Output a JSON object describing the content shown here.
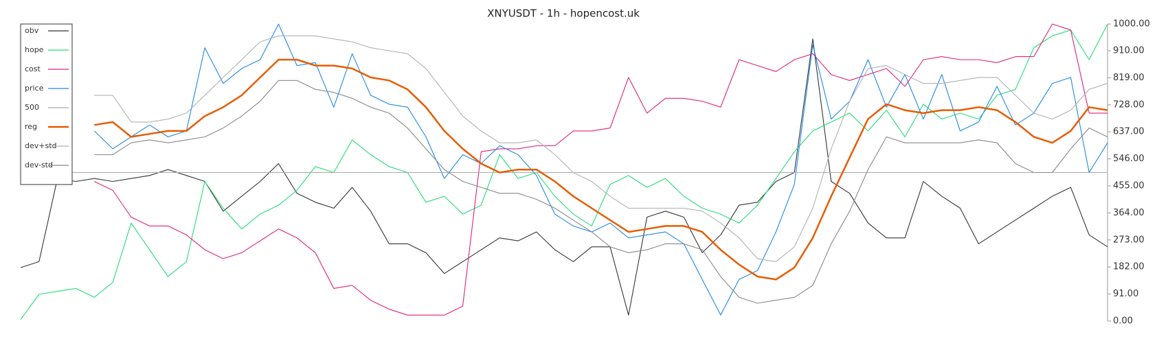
{
  "chart_data": {
    "type": "line",
    "title": "XNYUSDT - 1h - hopencost.uk",
    "ylim": [
      0,
      1000
    ],
    "yticks": [
      {
        "value": 0,
        "label": "0.00"
      },
      {
        "value": 91,
        "label": "91.00"
      },
      {
        "value": 182,
        "label": "182.00"
      },
      {
        "value": 273,
        "label": "273.00"
      },
      {
        "value": 364,
        "label": "364.00"
      },
      {
        "value": 455,
        "label": "455.00"
      },
      {
        "value": 546,
        "label": "546.00"
      },
      {
        "value": 637,
        "label": "637.00"
      },
      {
        "value": 728,
        "label": "728.00"
      },
      {
        "value": 819,
        "label": "819.00"
      },
      {
        "value": 910,
        "label": "910.00"
      },
      {
        "value": 1000,
        "label": "1000.00"
      }
    ],
    "legend": "top-left",
    "series": [
      {
        "name": "obv",
        "color": "#333333",
        "values": [
          180,
          200,
          480,
          470,
          480,
          470,
          480,
          490,
          510,
          490,
          470,
          370,
          420,
          470,
          530,
          430,
          400,
          380,
          450,
          370,
          260,
          260,
          230,
          160,
          200,
          240,
          280,
          270,
          300,
          240,
          200,
          250,
          250,
          20,
          350,
          370,
          350,
          230,
          290,
          390,
          400,
          470,
          500,
          950,
          470,
          430,
          330,
          280,
          280,
          470,
          420,
          380,
          260,
          300,
          340,
          380,
          420,
          450,
          290,
          250
        ]
      },
      {
        "name": "hope",
        "color": "#22dd77",
        "values": [
          5,
          90,
          100,
          110,
          80,
          130,
          330,
          240,
          150,
          200,
          470,
          380,
          310,
          360,
          390,
          440,
          520,
          500,
          610,
          560,
          520,
          500,
          400,
          420,
          360,
          390,
          560,
          480,
          500,
          420,
          360,
          320,
          460,
          490,
          450,
          480,
          420,
          380,
          360,
          330,
          390,
          480,
          570,
          640,
          670,
          700,
          640,
          710,
          620,
          730,
          680,
          700,
          680,
          760,
          780,
          920,
          960,
          980,
          880,
          1000
        ]
      },
      {
        "name": "cost",
        "color": "#e0217a",
        "values": [
          null,
          null,
          null,
          null,
          470,
          440,
          350,
          320,
          320,
          290,
          240,
          210,
          230,
          270,
          310,
          280,
          230,
          110,
          120,
          70,
          40,
          20,
          20,
          20,
          50,
          570,
          580,
          580,
          590,
          590,
          640,
          640,
          650,
          820,
          700,
          750,
          750,
          740,
          720,
          880,
          860,
          840,
          880,
          900,
          830,
          810,
          830,
          850,
          790,
          880,
          890,
          880,
          880,
          870,
          890,
          890,
          1000,
          980,
          700,
          700
        ]
      },
      {
        "name": "price",
        "color": "#1e88e5",
        "values": [
          null,
          null,
          null,
          null,
          640,
          580,
          620,
          660,
          620,
          640,
          920,
          800,
          850,
          880,
          1000,
          860,
          870,
          720,
          900,
          760,
          730,
          720,
          620,
          480,
          560,
          530,
          590,
          560,
          490,
          360,
          320,
          300,
          330,
          280,
          290,
          300,
          260,
          140,
          20,
          140,
          170,
          300,
          460,
          930,
          680,
          740,
          880,
          720,
          830,
          680,
          830,
          640,
          670,
          790,
          660,
          700,
          800,
          820,
          500,
          600
        ]
      },
      {
        "name": "500",
        "color": "#aaaaaa",
        "values": [
          500,
          500,
          500,
          500,
          500,
          500,
          500,
          500,
          500,
          500,
          500,
          500,
          500,
          500,
          500,
          500,
          500,
          500,
          500,
          500,
          500,
          500,
          500,
          500,
          500,
          500,
          500,
          500,
          500,
          500,
          500,
          500,
          500,
          500,
          500,
          500,
          500,
          500,
          500,
          500,
          500,
          500,
          500,
          500,
          500,
          500,
          500,
          500,
          500,
          500,
          500,
          500,
          500,
          500,
          500,
          500,
          500,
          500,
          500,
          500
        ]
      },
      {
        "name": "reg",
        "color": "#e65c00",
        "values": [
          null,
          null,
          null,
          null,
          660,
          670,
          620,
          630,
          640,
          640,
          690,
          720,
          760,
          820,
          880,
          880,
          860,
          860,
          850,
          820,
          810,
          780,
          720,
          640,
          580,
          530,
          500,
          510,
          510,
          470,
          420,
          380,
          340,
          300,
          310,
          320,
          320,
          300,
          240,
          190,
          150,
          140,
          180,
          280,
          420,
          550,
          680,
          730,
          710,
          700,
          710,
          710,
          720,
          710,
          670,
          620,
          600,
          640,
          720,
          710
        ]
      },
      {
        "name": "dev+std",
        "color": "#b0b0b0",
        "values": [
          null,
          null,
          null,
          null,
          760,
          760,
          670,
          670,
          680,
          700,
          760,
          820,
          880,
          940,
          960,
          960,
          960,
          950,
          940,
          920,
          910,
          900,
          850,
          770,
          690,
          640,
          600,
          600,
          610,
          560,
          500,
          470,
          420,
          380,
          380,
          380,
          380,
          370,
          330,
          280,
          210,
          200,
          250,
          380,
          580,
          740,
          850,
          860,
          830,
          800,
          800,
          810,
          820,
          820,
          760,
          700,
          680,
          710,
          780,
          800
        ]
      },
      {
        "name": "dev-std",
        "color": "#888888",
        "values": [
          null,
          null,
          null,
          null,
          560,
          560,
          600,
          610,
          600,
          610,
          620,
          650,
          690,
          740,
          810,
          810,
          780,
          770,
          750,
          720,
          700,
          650,
          580,
          510,
          470,
          450,
          430,
          430,
          410,
          380,
          340,
          300,
          250,
          230,
          240,
          260,
          260,
          240,
          150,
          80,
          60,
          70,
          80,
          120,
          260,
          370,
          510,
          620,
          600,
          600,
          600,
          600,
          610,
          600,
          530,
          500,
          500,
          580,
          650,
          620
        ]
      }
    ]
  }
}
